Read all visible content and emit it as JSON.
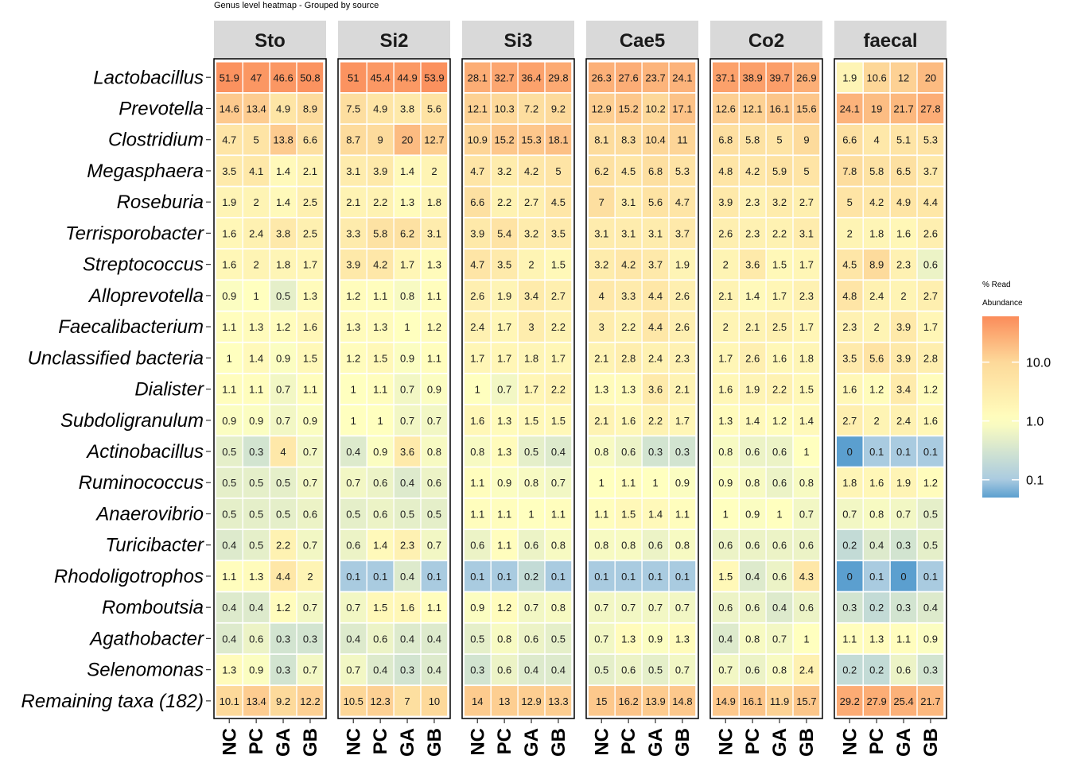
{
  "chart_data": {
    "type": "heatmap",
    "title": "Genus level heatmap - Grouped by source",
    "facets": [
      "Sto",
      "Si2",
      "Si3",
      "Cae5",
      "Co2",
      "faecal"
    ],
    "columns": [
      "NC",
      "PC",
      "GA",
      "GB"
    ],
    "rows": [
      "Lactobacillus",
      "Prevotella",
      "Clostridium",
      "Megasphaera",
      "Roseburia",
      "Terrisporobacter",
      "Streptococcus",
      "Alloprevotella",
      "Faecalibacterium",
      "Unclassified bacteria",
      "Dialister",
      "Subdoligranulum",
      "Actinobacillus",
      "Ruminococcus",
      "Anaerovibrio",
      "Turicibacter",
      "Rhodoligotrophos",
      "Romboutsia",
      "Agathobacter",
      "Selenomonas",
      "Remaining taxa (182)"
    ],
    "values": [
      [
        [
          51.9,
          47,
          46.6,
          50.8
        ],
        [
          51,
          45.4,
          44.9,
          53.9
        ],
        [
          28.1,
          32.7,
          36.4,
          29.8
        ],
        [
          26.3,
          27.6,
          23.7,
          24.1
        ],
        [
          37.1,
          38.9,
          39.7,
          26.9
        ],
        [
          1.9,
          10.6,
          12,
          20
        ]
      ],
      [
        [
          14.6,
          13.4,
          4.9,
          8.9
        ],
        [
          7.5,
          4.9,
          3.8,
          5.6
        ],
        [
          12.1,
          10.3,
          7.2,
          9.2
        ],
        [
          12.9,
          15.2,
          10.2,
          17.1
        ],
        [
          12.6,
          12.1,
          16.1,
          15.6
        ],
        [
          24.1,
          19,
          21.7,
          27.8
        ]
      ],
      [
        [
          4.7,
          5,
          13.8,
          6.6
        ],
        [
          8.7,
          9,
          20,
          12.7
        ],
        [
          10.9,
          15.2,
          15.3,
          18.1
        ],
        [
          8.1,
          8.3,
          10.4,
          11
        ],
        [
          6.8,
          5.8,
          5,
          9
        ],
        [
          6.6,
          4,
          5.1,
          5.3
        ]
      ],
      [
        [
          3.5,
          4.1,
          1.4,
          2.1
        ],
        [
          3.1,
          3.9,
          1.4,
          2
        ],
        [
          4.7,
          3.2,
          4.2,
          5
        ],
        [
          6.2,
          4.5,
          6.8,
          5.3
        ],
        [
          4.8,
          4.2,
          5.9,
          5
        ],
        [
          7.8,
          5.8,
          6.5,
          3.7
        ]
      ],
      [
        [
          1.9,
          2,
          1.4,
          2.5
        ],
        [
          2.1,
          2.2,
          1.3,
          1.8
        ],
        [
          6.6,
          2.2,
          2.7,
          4.5
        ],
        [
          7,
          3.1,
          5.6,
          4.7
        ],
        [
          3.9,
          2.3,
          3.2,
          2.7
        ],
        [
          5,
          4.2,
          4.9,
          4.4
        ]
      ],
      [
        [
          1.6,
          2.4,
          3.8,
          2.5
        ],
        [
          3.3,
          5.8,
          6.2,
          3.1
        ],
        [
          3.9,
          5.4,
          3.2,
          3.5
        ],
        [
          3.1,
          3.1,
          3.1,
          3.7
        ],
        [
          2.6,
          2.3,
          2.2,
          3.1
        ],
        [
          2,
          1.8,
          1.6,
          2.6
        ]
      ],
      [
        [
          1.6,
          2,
          1.8,
          1.7
        ],
        [
          3.9,
          4.2,
          1.7,
          1.3
        ],
        [
          4.7,
          3.5,
          2,
          1.5
        ],
        [
          3.2,
          4.2,
          3.7,
          1.9
        ],
        [
          2,
          3.6,
          1.5,
          1.7
        ],
        [
          4.5,
          8.9,
          2.3,
          0.6
        ]
      ],
      [
        [
          0.9,
          1,
          0.5,
          1.3
        ],
        [
          1.2,
          1.1,
          0.8,
          1.1
        ],
        [
          2.6,
          1.9,
          3.4,
          2.7
        ],
        [
          4,
          3.3,
          4.4,
          2.6
        ],
        [
          2.1,
          1.4,
          1.7,
          2.3
        ],
        [
          4.8,
          2.4,
          2,
          2.7
        ]
      ],
      [
        [
          1.1,
          1.3,
          1.2,
          1.6
        ],
        [
          1.3,
          1.3,
          1,
          1.2
        ],
        [
          2.4,
          1.7,
          3,
          2.2
        ],
        [
          3,
          2.2,
          4.4,
          2.6
        ],
        [
          2,
          2.1,
          2.5,
          1.7
        ],
        [
          2.3,
          2,
          3.9,
          1.7
        ]
      ],
      [
        [
          1,
          1.4,
          0.9,
          1.5
        ],
        [
          1.2,
          1.5,
          0.9,
          1.1
        ],
        [
          1.7,
          1.7,
          1.8,
          1.7
        ],
        [
          2.1,
          2.8,
          2.4,
          2.3
        ],
        [
          1.7,
          2.6,
          1.6,
          1.8
        ],
        [
          3.5,
          5.6,
          3.9,
          2.8
        ]
      ],
      [
        [
          1.1,
          1.1,
          0.7,
          1.1
        ],
        [
          1,
          1.1,
          0.7,
          0.9
        ],
        [
          1,
          0.7,
          1.7,
          2.2
        ],
        [
          1.3,
          1.3,
          3.6,
          2.1
        ],
        [
          1.6,
          1.9,
          2.2,
          1.5
        ],
        [
          1.6,
          1.2,
          3.4,
          1.2
        ]
      ],
      [
        [
          0.9,
          0.9,
          0.7,
          0.9
        ],
        [
          1,
          1,
          0.7,
          0.7
        ],
        [
          1.6,
          1.3,
          1.5,
          1.5
        ],
        [
          2.1,
          1.6,
          2.2,
          1.7
        ],
        [
          1.3,
          1.4,
          1.2,
          1.4
        ],
        [
          2.7,
          2,
          2.4,
          1.6
        ]
      ],
      [
        [
          0.5,
          0.3,
          4,
          0.7
        ],
        [
          0.4,
          0.9,
          3.6,
          0.8
        ],
        [
          0.8,
          1.3,
          0.5,
          0.4
        ],
        [
          0.8,
          0.6,
          0.3,
          0.3
        ],
        [
          0.8,
          0.6,
          0.6,
          1
        ],
        [
          0,
          0.1,
          0.1,
          0.1
        ]
      ],
      [
        [
          0.5,
          0.5,
          0.5,
          0.7
        ],
        [
          0.7,
          0.6,
          0.4,
          0.6
        ],
        [
          1.1,
          0.9,
          0.8,
          0.7
        ],
        [
          1,
          1.1,
          1,
          0.9
        ],
        [
          0.9,
          0.8,
          0.6,
          0.8
        ],
        [
          1.8,
          1.6,
          1.9,
          1.2
        ]
      ],
      [
        [
          0.5,
          0.5,
          0.5,
          0.6
        ],
        [
          0.5,
          0.6,
          0.5,
          0.5
        ],
        [
          1.1,
          1.1,
          1,
          1.1
        ],
        [
          1.1,
          1.5,
          1.4,
          1.1
        ],
        [
          1,
          0.9,
          1,
          0.7
        ],
        [
          0.7,
          0.8,
          0.7,
          0.5
        ]
      ],
      [
        [
          0.4,
          0.5,
          2.2,
          0.7
        ],
        [
          0.6,
          1.4,
          2.3,
          0.7
        ],
        [
          0.6,
          1.1,
          0.6,
          0.8
        ],
        [
          0.8,
          0.8,
          0.6,
          0.8
        ],
        [
          0.6,
          0.6,
          0.6,
          0.6
        ],
        [
          0.2,
          0.4,
          0.3,
          0.5
        ]
      ],
      [
        [
          1.1,
          1.3,
          4.4,
          2
        ],
        [
          0.1,
          0.1,
          0.4,
          0.1
        ],
        [
          0.1,
          0.1,
          0.2,
          0.1
        ],
        [
          0.1,
          0.1,
          0.1,
          0.1
        ],
        [
          1.5,
          0.4,
          0.6,
          4.3
        ],
        [
          0,
          0.1,
          0,
          0.1
        ]
      ],
      [
        [
          0.4,
          0.4,
          1.2,
          0.7
        ],
        [
          0.7,
          1.5,
          1.6,
          1.1
        ],
        [
          0.9,
          1.2,
          0.7,
          0.8
        ],
        [
          0.7,
          0.7,
          0.7,
          0.7
        ],
        [
          0.6,
          0.6,
          0.4,
          0.6
        ],
        [
          0.3,
          0.2,
          0.3,
          0.4
        ]
      ],
      [
        [
          0.4,
          0.6,
          0.3,
          0.3
        ],
        [
          0.4,
          0.6,
          0.4,
          0.4
        ],
        [
          0.5,
          0.8,
          0.6,
          0.5
        ],
        [
          0.7,
          1.3,
          0.9,
          1.3
        ],
        [
          0.4,
          0.8,
          0.7,
          1
        ],
        [
          1.1,
          1.3,
          1.1,
          0.9
        ]
      ],
      [
        [
          1.3,
          0.9,
          0.3,
          0.7
        ],
        [
          0.7,
          0.4,
          0.3,
          0.4
        ],
        [
          0.3,
          0.6,
          0.4,
          0.4
        ],
        [
          0.5,
          0.6,
          0.5,
          0.7
        ],
        [
          0.7,
          0.6,
          0.8,
          2.4
        ],
        [
          0.2,
          0.2,
          0.6,
          0.3
        ]
      ],
      [
        [
          10.1,
          13.4,
          9.2,
          12.2
        ],
        [
          10.5,
          12.3,
          7,
          10
        ],
        [
          14,
          13,
          12.9,
          13.3
        ],
        [
          15,
          16.2,
          13.9,
          14.8
        ],
        [
          14.9,
          16.1,
          11.9,
          15.7
        ],
        [
          29.2,
          27.9,
          25.4,
          21.7
        ]
      ]
    ],
    "legend": {
      "title_line1": "% Read",
      "title_line2": "Abundance",
      "scale": "log10",
      "ticks": [
        0.1,
        1.0,
        10.0
      ],
      "tick_labels": [
        "0.1",
        "1.0",
        "10.0"
      ],
      "range": [
        0.05,
        60
      ]
    },
    "colors": {
      "low": "#5b9fcf",
      "mid_low": "#a9cbe0",
      "mid": "#ffffbf",
      "high_mid": "#fdd99a",
      "high": "#fb8c5a",
      "strip_bg": "#d9d9d9"
    }
  }
}
